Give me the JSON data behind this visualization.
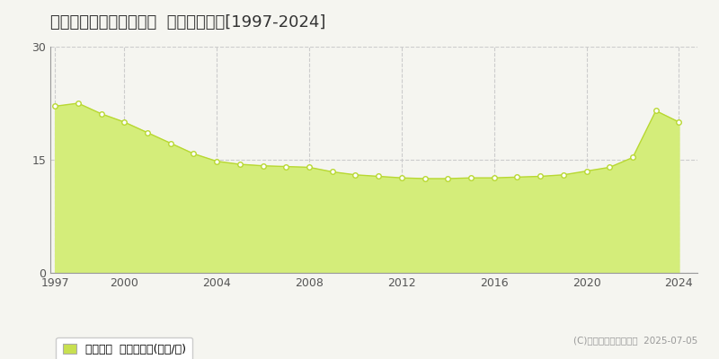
{
  "title": "札幌市手稲区新発寒七条  基準地価推移[1997-2024]",
  "years": [
    1997,
    1998,
    1999,
    2000,
    2001,
    2002,
    2003,
    2004,
    2005,
    2006,
    2007,
    2008,
    2009,
    2010,
    2011,
    2012,
    2013,
    2014,
    2015,
    2016,
    2017,
    2018,
    2019,
    2020,
    2021,
    2022,
    2023,
    2024
  ],
  "values": [
    22.1,
    22.5,
    21.1,
    20.0,
    18.6,
    17.2,
    15.8,
    14.8,
    14.4,
    14.2,
    14.1,
    14.0,
    13.4,
    13.0,
    12.8,
    12.6,
    12.5,
    12.5,
    12.6,
    12.6,
    12.7,
    12.8,
    13.0,
    13.5,
    14.0,
    15.3,
    21.5,
    20.0
  ],
  "ylim": [
    0,
    30
  ],
  "yticks": [
    0,
    15,
    30
  ],
  "xticks": [
    1997,
    2000,
    2004,
    2008,
    2012,
    2016,
    2020,
    2024
  ],
  "fill_color": "#d4ed7a",
  "line_color": "#b8d832",
  "marker_color": "#ffffff",
  "marker_edge_color": "#b8d832",
  "grid_color": "#cccccc",
  "bg_color": "#f5f5f0",
  "plot_bg_color": "#f5f5f0",
  "legend_label": "基準地価  平均坪単価(万円/坪)",
  "legend_color": "#c8e050",
  "copyright_text": "(C)土地価格ドットコム  2025-07-05",
  "title_fontsize": 13,
  "axis_fontsize": 9,
  "legend_fontsize": 9
}
